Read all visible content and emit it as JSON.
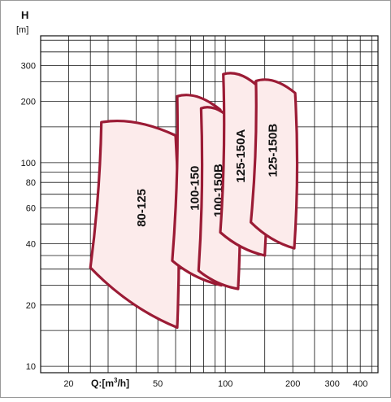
{
  "chart_data": {
    "type": "area",
    "y_axis_symbol": "H",
    "y_axis_unit": "[m]",
    "x_axis_prefix": "Q:[m",
    "x_axis_sup": "3",
    "x_axis_suffix": "/h]",
    "x_scale": "log",
    "y_scale": "log",
    "xlim": [
      15,
      480
    ],
    "ylim": [
      9.3,
      420
    ],
    "grid": true,
    "x_ticks": [
      {
        "value": 20,
        "label": "20"
      },
      {
        "value": 50,
        "label": "50"
      },
      {
        "value": 100,
        "label": "100"
      },
      {
        "value": 200,
        "label": "200"
      },
      {
        "value": 300,
        "label": "300"
      },
      {
        "value": 400,
        "label": "400"
      }
    ],
    "y_ticks": [
      {
        "value": 10,
        "label": "10"
      },
      {
        "value": 20,
        "label": "20"
      },
      {
        "value": 40,
        "label": "40"
      },
      {
        "value": 60,
        "label": "60"
      },
      {
        "value": 80,
        "label": "80"
      },
      {
        "value": 100,
        "label": "100"
      },
      {
        "value": 200,
        "label": "200"
      },
      {
        "value": 300,
        "label": "300"
      }
    ],
    "x_grid": [
      15,
      20,
      25,
      30,
      40,
      50,
      60,
      70,
      80,
      90,
      100,
      150,
      200,
      250,
      300,
      350,
      400,
      450
    ],
    "y_grid": [
      10,
      15,
      20,
      25,
      30,
      35,
      40,
      50,
      60,
      70,
      80,
      90,
      100,
      150,
      200,
      250,
      300,
      350,
      400
    ],
    "series": [
      {
        "name": "80-125",
        "tl": [
          28,
          158
        ],
        "tr": [
          60,
          136
        ],
        "bl": [
          25,
          30.5
        ],
        "br": [
          61,
          15.5
        ],
        "label_at": [
          44,
          60
        ]
      },
      {
        "name": "100-150",
        "tl": [
          61,
          212
        ],
        "tr": [
          95,
          182
        ],
        "bl": [
          58,
          33
        ],
        "br": [
          96,
          25
        ],
        "label_at": [
          76,
          75
        ]
      },
      {
        "name": "100-150B",
        "tl": [
          78,
          185
        ],
        "tr": [
          113,
          152
        ],
        "bl": [
          76,
          29.5
        ],
        "br": [
          114,
          24
        ],
        "label_at": [
          97,
          73
        ]
      },
      {
        "name": "125-150A",
        "tl": [
          98,
          272
        ],
        "tr": [
          150,
          220
        ],
        "bl": [
          95,
          45.5
        ],
        "br": [
          150,
          35
        ],
        "label_at": [
          122,
          108
        ]
      },
      {
        "name": "125-150B",
        "tl": [
          137,
          252
        ],
        "tr": [
          205,
          220
        ],
        "bl": [
          130,
          51
        ],
        "br": [
          203,
          38
        ],
        "label_at": [
          170,
          115
        ]
      }
    ],
    "colors": {
      "curve_stroke": "#9b1b35",
      "curve_fill": "#fcebeb",
      "grid": "#111111",
      "background": "#ffffff"
    }
  }
}
